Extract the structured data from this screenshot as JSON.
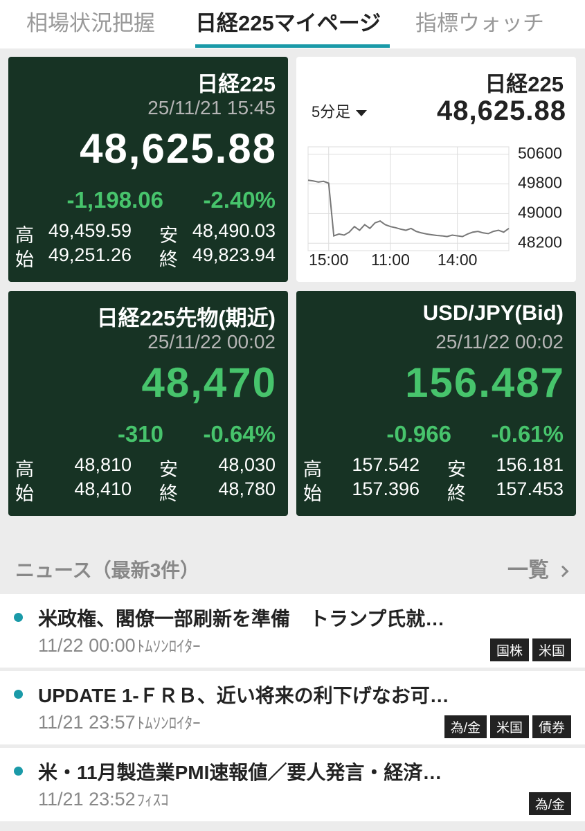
{
  "tabs": [
    {
      "label": "相場状況把握",
      "active": false
    },
    {
      "label": "日経225マイページ",
      "active": true
    },
    {
      "label": "指標ウォッチ",
      "active": false
    }
  ],
  "cards": [
    {
      "title": "日経225",
      "datetime": "25/11/21 15:45",
      "price": "48,625.88",
      "price_color": "#ffffff",
      "change": "-1,198.06",
      "change_pct": "-2.40%",
      "rows": [
        [
          "高",
          "49,459.59",
          "安",
          "48,490.03"
        ],
        [
          "始",
          "49,251.26",
          "終",
          "49,823.94"
        ]
      ]
    },
    {
      "title": "日経225",
      "price": "48,625.88",
      "interval": "5分足",
      "chart": {
        "type": "line",
        "values": [
          49900,
          49880,
          49850,
          49870,
          49820,
          48400,
          48450,
          48420,
          48500,
          48650,
          48550,
          48700,
          48600,
          48750,
          48800,
          48700,
          48650,
          48620,
          48580,
          48550,
          48600,
          48520,
          48480,
          48450,
          48430,
          48410,
          48400,
          48380,
          48420,
          48400,
          48380,
          48450,
          48500,
          48520,
          48480,
          48460,
          48520,
          48550,
          48500,
          48600
        ],
        "color": "#777777",
        "ylim": [
          48000,
          50800
        ],
        "yticks": [
          50600,
          49800,
          49000,
          48200
        ],
        "xlim": [
          0,
          39
        ],
        "xticks": [
          {
            "value": 4,
            "label": "15:00"
          },
          {
            "value": 16,
            "label": "11:00"
          },
          {
            "value": 29,
            "label": "14:00"
          }
        ],
        "grid": true
      }
    },
    {
      "title": "日経225先物(期近)",
      "datetime": "25/11/22 00:02",
      "price": "48,470",
      "price_color": "#47c46c",
      "change": "-310",
      "change_pct": "-0.64%",
      "rows": [
        [
          "高",
          "48,810",
          "安",
          "48,030"
        ],
        [
          "始",
          "48,410",
          "終",
          "48,780"
        ]
      ]
    },
    {
      "title": "USD/JPY(Bid)",
      "datetime": "25/11/22 00:02",
      "price": "156.487",
      "price_color": "#47c46c",
      "change": "-0.966",
      "change_pct": "-0.61%",
      "rows": [
        [
          "高",
          "157.542",
          "安",
          "156.181"
        ],
        [
          "始",
          "157.396",
          "終",
          "157.453"
        ]
      ]
    }
  ],
  "news": {
    "title": "ニュース（最新3件）",
    "more": "一覧",
    "items": [
      {
        "title": "米政権、閣僚一部刷新を準備　トランプ氏就…",
        "datetime": "11/22 00:00",
        "source": "ﾄﾑｿﾝﾛｲﾀｰ",
        "tags": [
          "国株",
          "米国"
        ]
      },
      {
        "title": "UPDATE 1-ＦＲＢ、近い将来の利下げなお可…",
        "datetime": "11/21 23:57",
        "source": "ﾄﾑｿﾝﾛｲﾀｰ",
        "tags": [
          "為/金",
          "米国",
          "債券"
        ]
      },
      {
        "title": "米・11月製造業PMI速報値／要人発言・経済…",
        "datetime": "11/21 23:52",
        "source": "ﾌｨｽｺ",
        "tags": [
          "為/金"
        ]
      }
    ]
  }
}
